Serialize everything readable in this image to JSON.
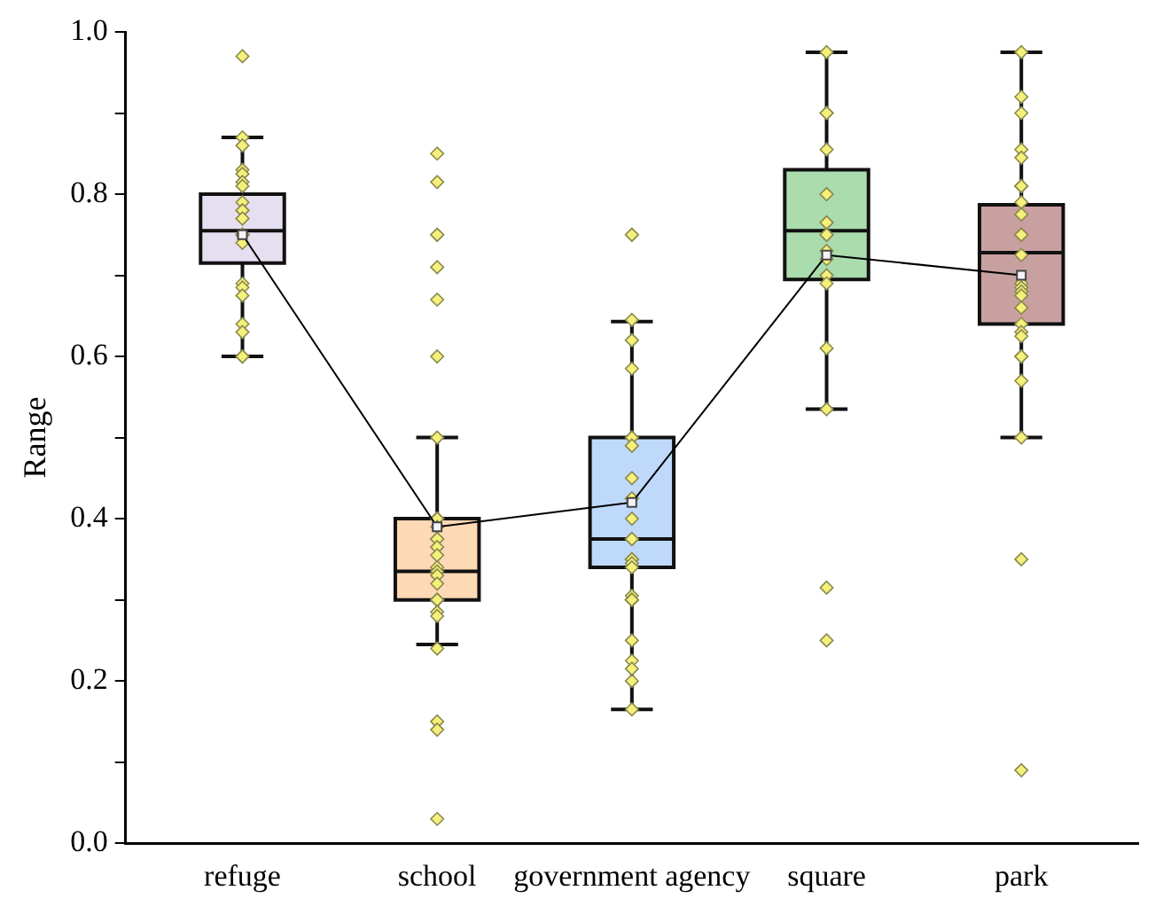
{
  "chart_data": {
    "type": "box",
    "ylabel": "Range",
    "categories": [
      "refuge",
      "school",
      "government agency",
      "square",
      "park"
    ],
    "ylim": [
      0,
      1
    ],
    "yticks": [
      {
        "value": 0,
        "label": "0.0"
      },
      {
        "value": 0.1,
        "label": null
      },
      {
        "value": 0.2,
        "label": "0.2"
      },
      {
        "value": 0.3,
        "label": null
      },
      {
        "value": 0.4,
        "label": "0.4"
      },
      {
        "value": 0.5,
        "label": null
      },
      {
        "value": 0.6,
        "label": "0.6"
      },
      {
        "value": 0.7,
        "label": null
      },
      {
        "value": 0.8,
        "label": "0.8"
      },
      {
        "value": 0.9,
        "label": null
      },
      {
        "value": 1,
        "label": "1.0"
      }
    ],
    "grid": false,
    "legend": false,
    "series": [
      {
        "colors": [
          "#e6dff0",
          "#fdd9b5",
          "#bfd9fb",
          "#aadcad",
          "#c9a0a0"
        ],
        "boxes": [
          {
            "low": 0.6,
            "q1": 0.715,
            "median": 0.755,
            "q3": 0.8,
            "high": 0.87
          },
          {
            "low": 0.245,
            "q1": 0.3,
            "median": 0.335,
            "q3": 0.4,
            "high": 0.5
          },
          {
            "low": 0.165,
            "q1": 0.34,
            "median": 0.375,
            "q3": 0.5,
            "high": 0.643
          },
          {
            "low": 0.535,
            "q1": 0.695,
            "median": 0.755,
            "q3": 0.83,
            "high": 0.975
          },
          {
            "low": 0.5,
            "q1": 0.64,
            "median": 0.728,
            "q3": 0.787,
            "high": 0.975
          }
        ]
      },
      {
        "type": "scatter",
        "color": "#f5f07a",
        "marker": "diamond",
        "x": [
          "refuge",
          "refuge",
          "refuge",
          "refuge",
          "refuge",
          "refuge",
          "refuge",
          "refuge",
          "refuge",
          "refuge",
          "refuge",
          "refuge",
          "refuge",
          "refuge",
          "refuge",
          "refuge",
          "refuge",
          "refuge",
          "refuge",
          "refuge",
          "refuge",
          "refuge",
          "refuge",
          "school",
          "school",
          "school",
          "school",
          "school",
          "school",
          "school",
          "school",
          "school",
          "school",
          "school",
          "school",
          "school",
          "school",
          "school",
          "school",
          "school",
          "school",
          "school",
          "school",
          "school",
          "school",
          "school",
          "school",
          "school",
          "school",
          "school",
          "school",
          "school",
          "government agency",
          "government agency",
          "government agency",
          "government agency",
          "government agency",
          "government agency",
          "government agency",
          "government agency",
          "government agency",
          "government agency",
          "government agency",
          "government agency",
          "government agency",
          "government agency",
          "government agency",
          "government agency",
          "government agency",
          "government agency",
          "government agency",
          "government agency",
          "government agency",
          "government agency",
          "government agency",
          "government agency",
          "government agency",
          "government agency",
          "government agency",
          "government agency",
          "government agency",
          "government agency",
          "square",
          "square",
          "square",
          "square",
          "square",
          "square",
          "square",
          "square",
          "square",
          "square",
          "square",
          "square",
          "square",
          "square",
          "square",
          "square",
          "square",
          "square",
          "square",
          "park",
          "park",
          "park",
          "park",
          "park",
          "park",
          "park",
          "park",
          "park",
          "park",
          "park",
          "park",
          "park",
          "park",
          "park",
          "park",
          "park",
          "park",
          "park",
          "park",
          "park",
          "park",
          "park",
          "park",
          "park",
          "park",
          "park"
        ],
        "values": [
          0.97,
          0.87,
          0.86,
          0.83,
          0.825,
          0.815,
          0.81,
          0.79,
          0.78,
          0.78,
          0.77,
          0.77,
          0.75,
          0.75,
          0.75,
          0.74,
          0.69,
          0.685,
          0.675,
          0.64,
          0.63,
          0.6,
          0.6,
          0.85,
          0.815,
          0.75,
          0.75,
          0.71,
          0.67,
          0.6,
          0.5,
          0.4,
          0.4,
          0.4,
          0.39,
          0.375,
          0.375,
          0.365,
          0.355,
          0.34,
          0.335,
          0.33,
          0.32,
          0.3,
          0.3,
          0.3,
          0.285,
          0.28,
          0.24,
          0.15,
          0.14,
          0.03,
          0.75,
          0.75,
          0.645,
          0.62,
          0.62,
          0.585,
          0.5,
          0.5,
          0.49,
          0.49,
          0.45,
          0.425,
          0.425,
          0.4,
          0.375,
          0.375,
          0.375,
          0.35,
          0.35,
          0.345,
          0.34,
          0.305,
          0.3,
          0.3,
          0.3,
          0.25,
          0.225,
          0.215,
          0.2,
          0.165,
          0.975,
          0.9,
          0.9,
          0.9,
          0.855,
          0.8,
          0.8,
          0.765,
          0.765,
          0.75,
          0.75,
          0.73,
          0.72,
          0.7,
          0.69,
          0.61,
          0.535,
          0.315,
          0.25,
          0.975,
          0.92,
          0.9,
          0.855,
          0.845,
          0.81,
          0.81,
          0.79,
          0.775,
          0.75,
          0.75,
          0.75,
          0.725,
          0.69,
          0.685,
          0.68,
          0.675,
          0.66,
          0.64,
          0.63,
          0.625,
          0.6,
          0.6,
          0.57,
          0.5,
          0.35,
          0.09
        ]
      },
      {
        "type": "line",
        "color": "#000000",
        "marker": "square",
        "values": [
          0.75,
          0.39,
          0.42,
          0.725,
          0.7
        ]
      }
    ]
  }
}
